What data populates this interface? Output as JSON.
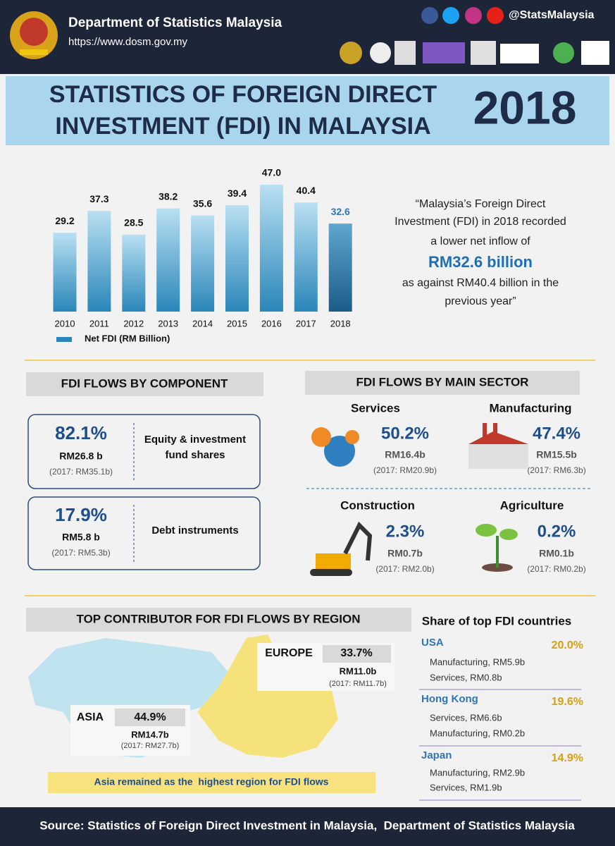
{
  "header": {
    "org": "Department of Statistics Malaysia",
    "url": "https://www.dosm.gov.my",
    "social": "@StatsMalaysia"
  },
  "title": {
    "lines": [
      "STATISTICS OF FOREIGN DIRECT",
      "INVESTMENT (FDI) IN MALAYSIA"
    ],
    "year": "2018"
  },
  "chart_data": {
    "type": "bar",
    "categories": [
      "2010",
      "2011",
      "2012",
      "2013",
      "2014",
      "2015",
      "2016",
      "2017",
      "2018"
    ],
    "series": [
      {
        "name": "Net FDI (RM Billion)",
        "values": [
          29.2,
          37.3,
          28.5,
          38.2,
          35.6,
          39.4,
          47,
          40.4,
          32.6
        ],
        "value_labels": [
          "29.2",
          "37.3",
          "28.5",
          "38.2",
          "35.6",
          "39.4",
          "47.0",
          "40.4",
          "32.6"
        ]
      }
    ]
  },
  "quote": {
    "lines": [
      "“Malaysia’s Foreign Direct",
      "Investment (FDI) in 2018 recorded",
      "a lower net inflow of",
      "RM32.6 billion",
      "as against RM40.4 billion in the",
      "previous year”"
    ]
  },
  "components": {
    "title": "FDI FLOWS BY COMPONENT",
    "items": [
      {
        "share": "82.1%",
        "amount": "RM26.8 b",
        "previous": "(2017: RM35.1b)",
        "label": "Equity & investment fund shares"
      },
      {
        "share": "17.9%",
        "amount": "RM5.8 b",
        "previous": "(2017: RM5.3b)",
        "label": "Debt instruments"
      }
    ]
  },
  "sectors": {
    "title": "FDI FLOWS BY MAIN SECTOR",
    "items": [
      {
        "name": "Services",
        "share": "50.2%",
        "amount": "RM16.4b",
        "previous": "(2017: RM20.9b)"
      },
      {
        "name": "Manufacturing",
        "share": "47.4%",
        "amount": "RM15.5b",
        "previous": "(2017: RM6.3b)"
      },
      {
        "name": "Construction",
        "share": "2.3%",
        "amount": "RM0.7b",
        "previous": "(2017: RM2.0b)"
      },
      {
        "name": "Agriculture",
        "share": "0.2%",
        "amount": "RM0.1b",
        "previous": "(2017: RM0.2b)"
      }
    ]
  },
  "regions": {
    "title": "TOP CONTRIBUTOR FOR FDI FLOWS BY REGION",
    "items": [
      {
        "name": "EUROPE",
        "share": "33.7%",
        "amount": "RM11.0b",
        "previous": "(2017: RM11.7b)"
      },
      {
        "name": "ASIA",
        "share": "44.9%",
        "amount": "RM14.7b",
        "previous": "(2017: RM27.7b)"
      }
    ],
    "note": "Asia remained as the  highest region for FDI flows"
  },
  "countries": {
    "title": "Share of top FDI countries",
    "items": [
      {
        "name": "USA",
        "share": "20.0%",
        "details": [
          "Manufacturing, RM5.9b",
          "Services, RM0.8b"
        ]
      },
      {
        "name": "Hong Kong",
        "share": "19.6%",
        "details": [
          "Services, RM6.6b",
          "Manufacturing, RM0.2b"
        ]
      },
      {
        "name": "Japan",
        "share": "14.9%",
        "details": [
          "Manufacturing, RM2.9b",
          "Services, RM1.9b"
        ]
      }
    ]
  },
  "source": "Source: Statistics of Foreign Direct Investment in Malaysia,  Department of Statistics Malaysia"
}
